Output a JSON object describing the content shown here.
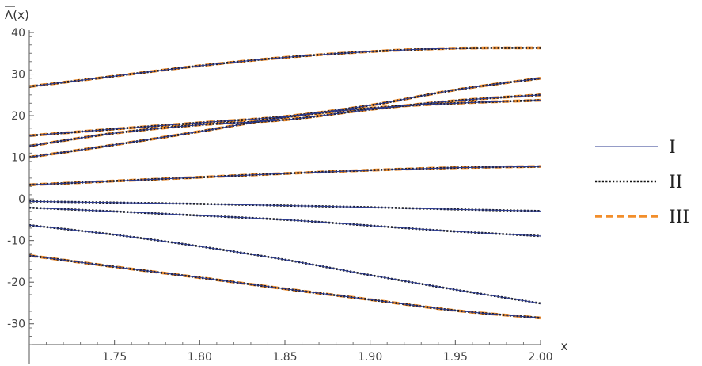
{
  "chart_data": {
    "type": "line",
    "title": "",
    "xlabel": "x",
    "ylabel": "Λ(x)",
    "ylabel_overline": true,
    "xlim": [
      1.7,
      2.0
    ],
    "ylim": [
      -35,
      40
    ],
    "x_ticks": [
      1.75,
      1.8,
      1.85,
      1.9,
      1.95,
      2.0
    ],
    "x_tick_labels": [
      "1.75",
      "1.80",
      "1.85",
      "1.90",
      "1.95",
      "2.00"
    ],
    "y_ticks": [
      -30,
      -20,
      -10,
      0,
      10,
      20,
      30,
      40
    ],
    "y_tick_labels": [
      "-30",
      "-20",
      "-10",
      "0",
      "10",
      "20",
      "30",
      "40"
    ],
    "grid": false,
    "legend_position": "right",
    "legend": [
      {
        "label": "I",
        "color": "#2b3a8f",
        "style": "solid"
      },
      {
        "label": "II",
        "color": "#111111",
        "style": "dotted"
      },
      {
        "label": "III",
        "color": "#f28e2b",
        "style": "dashed"
      }
    ],
    "x": [
      1.7,
      1.75,
      1.8,
      1.85,
      1.9,
      1.95,
      2.0
    ],
    "curves": [
      {
        "values": [
          27.0,
          29.5,
          32.0,
          34.0,
          35.4,
          36.2,
          36.3
        ],
        "styles": [
          "I",
          "II",
          "III"
        ]
      },
      {
        "values": [
          15.2,
          16.8,
          18.3,
          19.8,
          22.5,
          26.2,
          29.0
        ],
        "styles": [
          "I",
          "II",
          "III"
        ]
      },
      {
        "values": [
          12.7,
          15.8,
          17.8,
          19.0,
          21.5,
          23.6,
          25.0
        ],
        "styles": [
          "I",
          "II",
          "III"
        ]
      },
      {
        "values": [
          10.0,
          13.0,
          16.2,
          19.6,
          21.8,
          23.0,
          23.7
        ],
        "styles": [
          "I",
          "II",
          "III"
        ]
      },
      {
        "values": [
          3.4,
          4.3,
          5.2,
          6.1,
          6.9,
          7.5,
          7.8
        ],
        "styles": [
          "I",
          "II",
          "III"
        ]
      },
      {
        "values": [
          -0.6,
          -0.9,
          -1.2,
          -1.6,
          -2.0,
          -2.5,
          -2.9
        ],
        "styles": [
          "I",
          "II"
        ]
      },
      {
        "values": [
          -2.1,
          -3.0,
          -4.0,
          -5.0,
          -6.4,
          -7.8,
          -8.9
        ],
        "styles": [
          "I",
          "II"
        ]
      },
      {
        "values": [
          -6.3,
          -8.6,
          -11.4,
          -14.6,
          -18.3,
          -21.8,
          -25.1
        ],
        "styles": [
          "I",
          "II"
        ]
      },
      {
        "values": [
          -13.6,
          -16.3,
          -18.9,
          -21.6,
          -24.2,
          -26.8,
          -28.6
        ],
        "styles": [
          "I",
          "II",
          "III"
        ]
      }
    ]
  }
}
